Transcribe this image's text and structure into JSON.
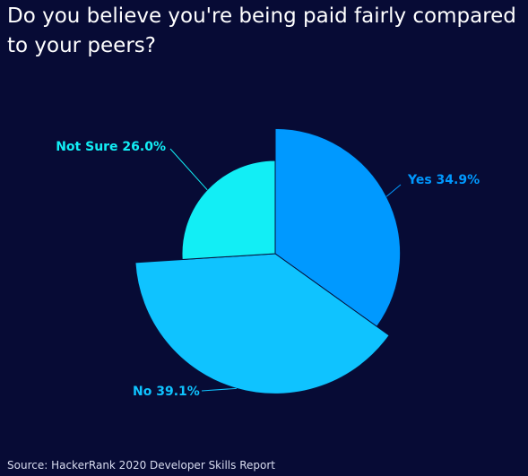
{
  "chart_data": {
    "type": "pie",
    "title": "Do you believe you're being paid fairly compared to your peers?",
    "slices": [
      {
        "category": "Yes",
        "value": 34.9,
        "color": "#0099ff",
        "label": "Yes 34.9%"
      },
      {
        "category": "No",
        "value": 39.1,
        "color": "#0fc3ff",
        "label": "No 39.1%"
      },
      {
        "category": "Not Sure",
        "value": 26.0,
        "color": "#12eef5",
        "label": "Not Sure 26.0%"
      }
    ],
    "radius_varies_by_value": true,
    "legend": "none",
    "source": "Source: HackerRank 2020 Developer Skills Report"
  }
}
